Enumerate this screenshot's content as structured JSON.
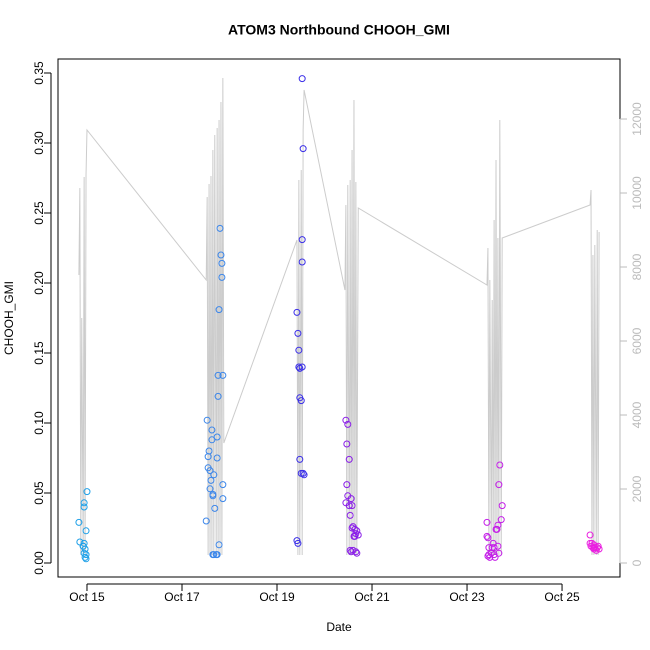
{
  "chart_data": {
    "type": "scatter",
    "title": "ATOM3 Northbound CHOOH_GMI",
    "xlabel": "Date",
    "ylabel": "CHOOH_GMI",
    "xlim": [
      14.39,
      26.22
    ],
    "xticks": [
      {
        "value": 15,
        "label": "Oct 15"
      },
      {
        "value": 17,
        "label": "Oct 17"
      },
      {
        "value": 19,
        "label": "Oct 19"
      },
      {
        "value": 21,
        "label": "Oct 21"
      },
      {
        "value": 23,
        "label": "Oct 23"
      },
      {
        "value": 25,
        "label": "Oct 25"
      }
    ],
    "ylim": [
      -0.01,
      0.36
    ],
    "yticks": [
      {
        "value": 0,
        "label": "0.00"
      },
      {
        "value": 0.05,
        "label": "0.05"
      },
      {
        "value": 0.1,
        "label": "0.10"
      },
      {
        "value": 0.15,
        "label": "0.15"
      },
      {
        "value": 0.2,
        "label": "0.20"
      },
      {
        "value": 0.25,
        "label": "0.25"
      },
      {
        "value": 0.3,
        "label": "0.30"
      },
      {
        "value": 0.35,
        "label": "0.35"
      }
    ],
    "y2lim": [
      -378,
      13622
    ],
    "y2ticks": [
      0,
      2000,
      4000,
      6000,
      8000,
      10000,
      12000
    ],
    "series": [
      {
        "type": "line",
        "axis": "y2",
        "color": "#cccccc",
        "x": [
          14.83,
          14.85,
          14.87,
          14.89,
          14.92,
          14.94,
          14.96,
          14.98,
          15.0,
          17.51,
          17.53,
          17.55,
          17.57,
          17.59,
          17.61,
          17.63,
          17.65,
          17.67,
          17.69,
          17.72,
          17.74,
          17.76,
          17.78,
          17.8,
          17.82,
          17.84,
          17.86,
          17.88,
          19.42,
          19.44,
          19.46,
          19.48,
          19.51,
          19.53,
          19.55,
          19.57,
          20.43,
          20.45,
          20.47,
          20.49,
          20.52,
          20.54,
          20.56,
          20.58,
          20.6,
          20.62,
          20.64,
          20.66,
          20.68,
          20.71,
          23.42,
          23.44,
          23.46,
          23.48,
          23.51,
          23.53,
          23.55,
          23.57,
          23.59,
          23.61,
          23.63,
          23.65,
          23.67,
          23.69,
          23.72,
          23.74,
          25.59,
          25.61,
          25.63,
          25.65,
          25.67,
          25.69,
          25.72,
          25.74,
          25.76,
          25.78
        ],
        "values": [
          7784,
          10135,
          216,
          6622,
          216,
          10432,
          216,
          10486,
          11703,
          7649,
          9892,
          216,
          10243,
          216,
          10459,
          216,
          11162,
          216,
          11568,
          216,
          11757,
          216,
          11973,
          216,
          12459,
          216,
          13108,
          3243,
          8730,
          216,
          10351,
          216,
          10622,
          216,
          11703,
          12784,
          7378,
          9676,
          216,
          10216,
          216,
          10351,
          216,
          11162,
          216,
          12514,
          216,
          10297,
          216,
          9595,
          7514,
          8514,
          216,
          7649,
          216,
          7108,
          216,
          9270,
          216,
          10892,
          216,
          8784,
          216,
          11973,
          216,
          8784,
          9676,
          10081,
          216,
          8324,
          216,
          8595,
          216,
          9000,
          216,
          8946
        ]
      },
      {
        "color": "#1ea0e8",
        "x": [
          14.83,
          14.85,
          14.92,
          14.94,
          14.96,
          14.98,
          14.96,
          14.94,
          14.92,
          14.94,
          14.94,
          14.98,
          14.98,
          15.0
        ],
        "values": [
          0.029,
          0.015,
          0.012,
          0.007,
          0.004,
          0.003,
          0.01,
          0.014,
          0.012,
          0.043,
          0.04,
          0.023,
          0.006,
          0.051
        ]
      },
      {
        "color": "#3b86ea",
        "x": [
          17.51,
          17.53,
          17.55,
          17.55,
          17.57,
          17.59,
          17.59,
          17.61,
          17.63,
          17.63,
          17.65,
          17.65,
          17.67,
          17.65,
          17.67,
          17.69,
          17.72,
          17.74,
          17.74,
          17.74,
          17.76,
          17.76,
          17.78,
          17.78,
          17.8,
          17.82,
          17.84,
          17.84,
          17.86,
          17.86,
          17.86
        ],
        "values": [
          0.03,
          0.102,
          0.068,
          0.076,
          0.08,
          0.066,
          0.053,
          0.059,
          0.095,
          0.088,
          0.049,
          0.048,
          0.006,
          0.006,
          0.063,
          0.039,
          0.006,
          0.006,
          0.09,
          0.075,
          0.119,
          0.134,
          0.013,
          0.181,
          0.239,
          0.22,
          0.214,
          0.204,
          0.134,
          0.046,
          0.056
        ]
      },
      {
        "color": "#3a2ee8",
        "x": [
          19.42,
          19.42,
          19.44,
          19.44,
          19.46,
          19.46,
          19.48,
          19.48,
          19.51,
          19.48,
          19.51,
          19.53,
          19.53,
          19.53,
          19.55,
          19.55,
          19.57,
          19.53
        ],
        "values": [
          0.179,
          0.016,
          0.014,
          0.164,
          0.152,
          0.14,
          0.139,
          0.118,
          0.116,
          0.074,
          0.064,
          0.14,
          0.231,
          0.215,
          0.296,
          0.064,
          0.063,
          0.346
        ]
      },
      {
        "color": "#8a1ee8",
        "x": [
          20.45,
          20.47,
          20.49,
          20.52,
          20.47,
          20.45,
          20.49,
          20.52,
          20.54,
          20.56,
          20.58,
          20.58,
          20.6,
          20.62,
          20.6,
          20.56,
          20.54,
          20.64,
          20.64,
          20.66,
          20.68,
          20.71,
          20.66,
          20.68
        ],
        "values": [
          0.102,
          0.085,
          0.099,
          0.074,
          0.056,
          0.043,
          0.048,
          0.041,
          0.034,
          0.046,
          0.041,
          0.025,
          0.026,
          0.019,
          0.009,
          0.008,
          0.009,
          0.024,
          0.019,
          0.021,
          0.023,
          0.02,
          0.008,
          0.007
        ]
      },
      {
        "color": "#c41ee8",
        "x": [
          23.42,
          23.42,
          23.44,
          23.46,
          23.44,
          23.46,
          23.48,
          23.51,
          23.53,
          23.55,
          23.57,
          23.57,
          23.59,
          23.61,
          23.63,
          23.65,
          23.65,
          23.67,
          23.69,
          23.67,
          23.72,
          23.74
        ],
        "values": [
          0.029,
          0.019,
          0.018,
          0.011,
          0.005,
          0.006,
          0.004,
          0.007,
          0.011,
          0.014,
          0.011,
          0.006,
          0.004,
          0.024,
          0.024,
          0.027,
          0.012,
          0.007,
          0.07,
          0.056,
          0.031,
          0.041
        ]
      },
      {
        "color": "#ea1ee0",
        "x": [
          25.59,
          25.59,
          25.61,
          25.63,
          25.65,
          25.67,
          25.67,
          25.69,
          25.72,
          25.74,
          25.76,
          25.78
        ],
        "values": [
          0.02,
          0.014,
          0.012,
          0.014,
          0.011,
          0.013,
          0.01,
          0.011,
          0.009,
          0.011,
          0.012,
          0.01
        ]
      }
    ]
  }
}
